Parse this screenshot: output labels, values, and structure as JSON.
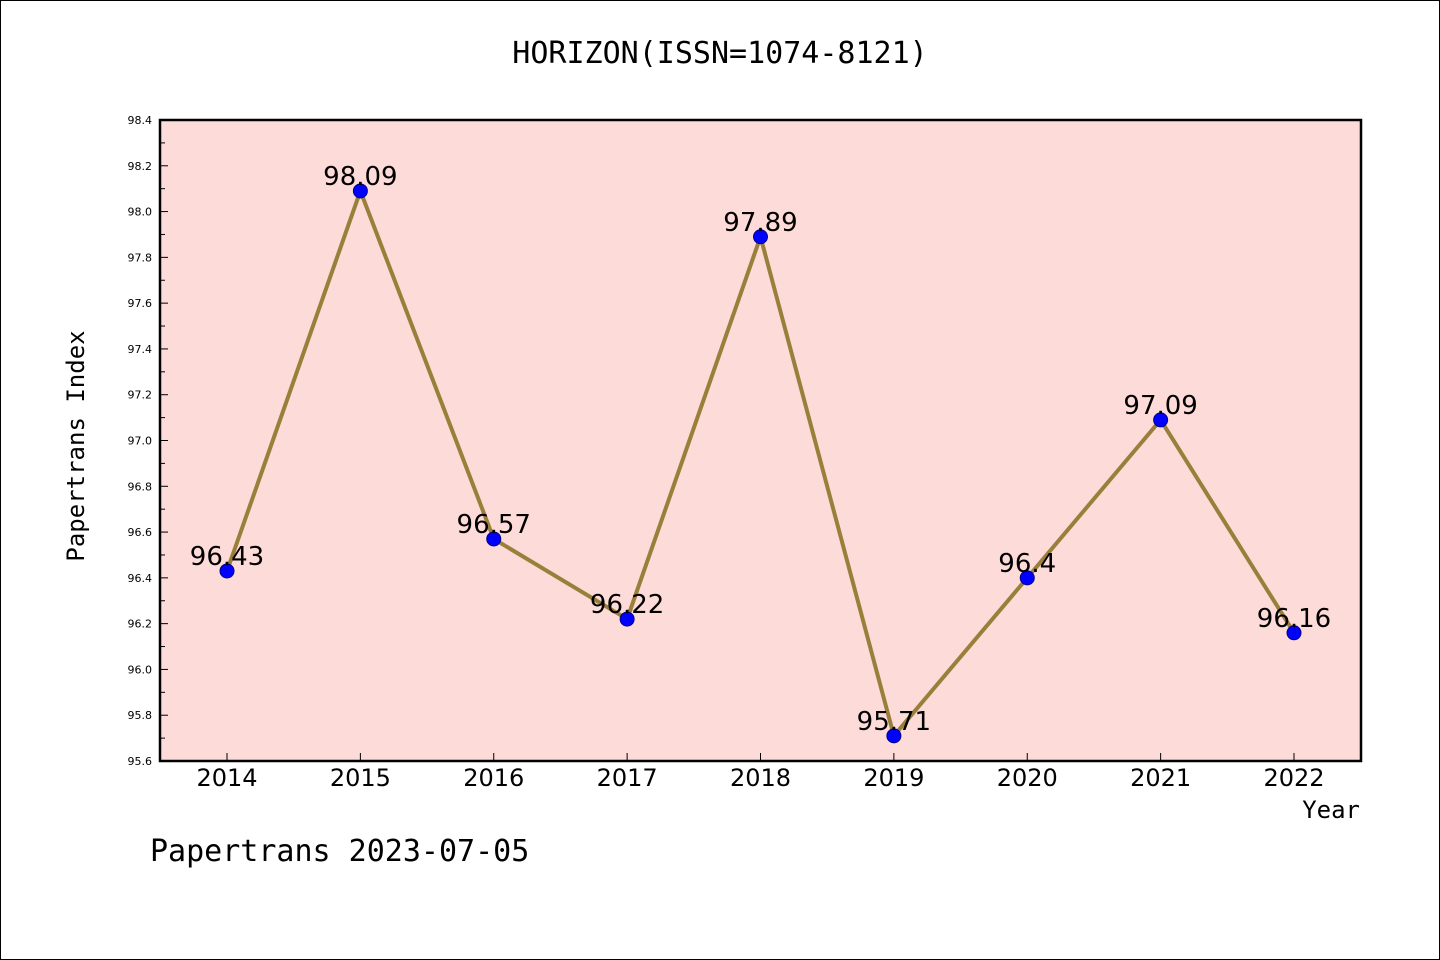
{
  "chart_data": {
    "type": "line",
    "title": "HORIZON(ISSN=1074-8121)",
    "xlabel": "Year",
    "ylabel": "Papertrans Index",
    "categories": [
      "2014",
      "2015",
      "2016",
      "2017",
      "2018",
      "2019",
      "2020",
      "2021",
      "2022"
    ],
    "values": [
      96.43,
      98.09,
      96.57,
      96.22,
      97.89,
      95.71,
      96.4,
      97.09,
      96.16
    ],
    "data_labels": [
      "96.43",
      "98.09",
      "96.57",
      "96.22",
      "97.89",
      "95.71",
      "96.4",
      "97.09",
      "96.16"
    ],
    "ylim": [
      95.6,
      98.4
    ],
    "yticks": [
      "95.6",
      "95.8",
      "96.0",
      "96.2",
      "96.4",
      "96.6",
      "96.8",
      "97.0",
      "97.2",
      "97.4",
      "97.6",
      "97.8",
      "98.0",
      "98.2",
      "98.4"
    ],
    "grid": false,
    "colors": {
      "background": "#fddbd9",
      "line": "#9a7f3a",
      "marker": "#0000ff"
    }
  },
  "footer": "Papertrans 2023-07-05"
}
